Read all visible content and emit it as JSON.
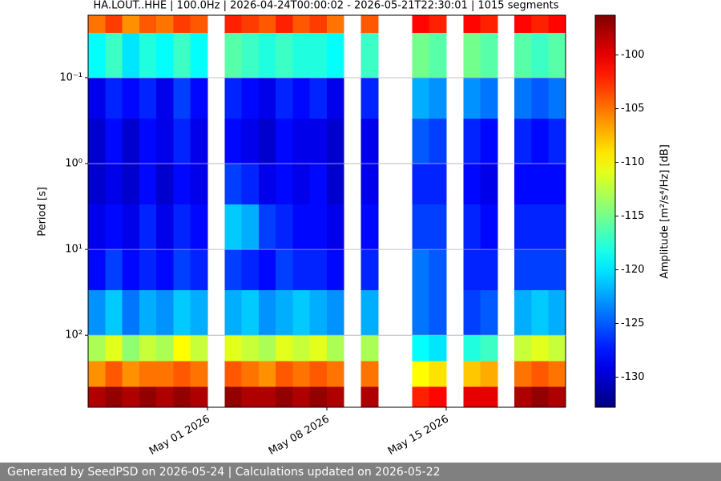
{
  "chart_data": {
    "type": "spectrogram",
    "title": "HA.LOUT..HHE | 100.0Hz | 2026-04-24T00:00:02 - 2026-05-21T22:30:01 | 1015 segments",
    "ylabel": "Period [s]",
    "colorbar_label": "Amplitude [m²/s⁴/Hz] [dB]",
    "log_y": true,
    "y_inverted": true,
    "grid": true,
    "colormap": "jet",
    "xlim": [
      "2026-04-24",
      "2026-05-22"
    ],
    "xticks": [
      {
        "value": "2026-05-01",
        "label": "May 01 2026"
      },
      {
        "value": "2026-05-08",
        "label": "May 08 2026"
      },
      {
        "value": "2026-05-15",
        "label": "May 15 2026"
      }
    ],
    "ylim": [
      0.0187,
      690
    ],
    "yticks": [
      {
        "value": 0.1,
        "label": "10⁻¹"
      },
      {
        "value": 1,
        "label": "10⁰"
      },
      {
        "value": 10,
        "label": "10¹"
      },
      {
        "value": 100,
        "label": "10²"
      }
    ],
    "clim": [
      -132.8,
      -96.3
    ],
    "cticks": [
      -100,
      -105,
      -110,
      -115,
      -120,
      -125,
      -130
    ],
    "period_bins": [
      0.0187,
      0.03,
      0.1,
      0.3,
      1,
      3,
      10,
      30,
      100,
      200,
      400,
      690
    ],
    "x": [
      "2026-04-24",
      "2026-04-25",
      "2026-04-26",
      "2026-04-27",
      "2026-04-28",
      "2026-04-29",
      "2026-04-30",
      "2026-05-01",
      "2026-05-02",
      "2026-05-03",
      "2026-05-04",
      "2026-05-05",
      "2026-05-06",
      "2026-05-07",
      "2026-05-08",
      "2026-05-09",
      "2026-05-10",
      "2026-05-11",
      "2026-05-12",
      "2026-05-13",
      "2026-05-14",
      "2026-05-15",
      "2026-05-16",
      "2026-05-17",
      "2026-05-18",
      "2026-05-19",
      "2026-05-20",
      "2026-05-21"
    ],
    "values": [
      [
        -105,
        -119,
        -129,
        -130,
        -130,
        -129,
        -128,
        -123,
        -113,
        -106,
        -98
      ],
      [
        -103,
        -117,
        -127,
        -128,
        -129,
        -128,
        -126,
        -121,
        -111,
        -104,
        -97
      ],
      [
        -106,
        -120,
        -128,
        -130,
        -130,
        -129,
        -128,
        -124,
        -114,
        -106,
        -98
      ],
      [
        -104,
        -118,
        -127,
        -128,
        -128,
        -127,
        -127,
        -122,
        -112,
        -105,
        -97
      ],
      [
        -105,
        -119,
        -129,
        -129,
        -130,
        -129,
        -128,
        -123,
        -113,
        -105,
        -98
      ],
      [
        -103,
        -117,
        -126,
        -127,
        -128,
        -127,
        -126,
        -121,
        -110,
        -104,
        -97
      ],
      [
        -104,
        -119,
        -128,
        -129,
        -129,
        -128,
        -127,
        -122,
        -112,
        -105,
        -98
      ],
      null,
      [
        -102,
        -116,
        -127,
        -128,
        -126,
        -121,
        -126,
        -122,
        -111,
        -104,
        -97
      ],
      [
        -103,
        -117,
        -128,
        -129,
        -127,
        -122,
        -127,
        -121,
        -112,
        -105,
        -98
      ],
      [
        -104,
        -118,
        -129,
        -130,
        -129,
        -126,
        -128,
        -123,
        -113,
        -106,
        -98
      ],
      [
        -102,
        -117,
        -127,
        -128,
        -128,
        -127,
        -126,
        -122,
        -111,
        -104,
        -97
      ],
      [
        -104,
        -118,
        -128,
        -129,
        -129,
        -128,
        -127,
        -121,
        -112,
        -105,
        -98
      ],
      [
        -103,
        -118,
        -127,
        -129,
        -128,
        -128,
        -127,
        -122,
        -111,
        -104,
        -97
      ],
      [
        -105,
        -119,
        -129,
        -130,
        -130,
        -129,
        -128,
        -123,
        -113,
        -105,
        -98
      ],
      null,
      [
        -104,
        -117,
        -127,
        -129,
        -129,
        -128,
        -127,
        -122,
        -113,
        -105,
        -98
      ],
      null,
      null,
      [
        -101,
        -115,
        -122,
        -125,
        -127,
        -126,
        -124,
        -124,
        -119,
        -110,
        -102
      ],
      [
        -102,
        -116,
        -123,
        -126,
        -127,
        -126,
        -125,
        -125,
        -120,
        -109,
        -101
      ],
      null,
      [
        -101,
        -115,
        -123,
        -127,
        -128,
        -127,
        -127,
        -126,
        -118,
        -108,
        -100
      ],
      [
        -102,
        -116,
        -124,
        -128,
        -129,
        -128,
        -127,
        -125,
        -117,
        -107,
        -100
      ],
      null,
      [
        -101,
        -116,
        -124,
        -127,
        -128,
        -127,
        -126,
        -122,
        -112,
        -105,
        -98
      ],
      [
        -102,
        -117,
        -125,
        -128,
        -128,
        -127,
        -126,
        -121,
        -111,
        -104,
        -97
      ],
      [
        -101,
        -116,
        -124,
        -127,
        -128,
        -127,
        -126,
        -122,
        -112,
        -105,
        -98
      ]
    ]
  },
  "footer": "Generated by SeedPSD on 2026-05-24 | Calculations updated on 2026-05-22"
}
